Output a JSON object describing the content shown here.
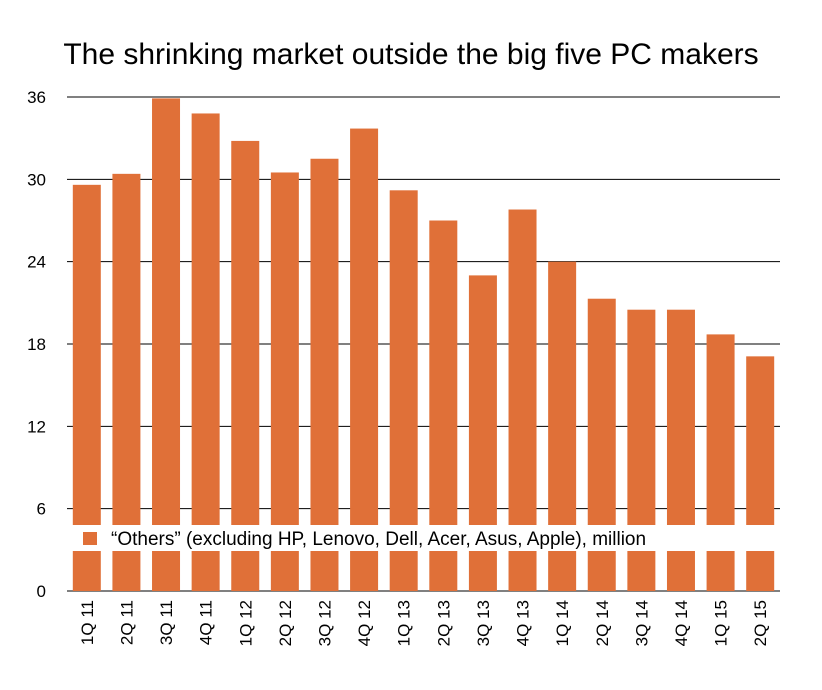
{
  "chart_data": {
    "type": "bar",
    "title": "The shrinking market outside the big five PC makers",
    "categories": [
      "1Q 11",
      "2Q 11",
      "3Q 11",
      "4Q 11",
      "1Q 12",
      "2Q 12",
      "3Q 12",
      "4Q 12",
      "1Q 13",
      "2Q 13",
      "3Q 13",
      "4Q 13",
      "1Q 14",
      "2Q 14",
      "3Q 14",
      "4Q 14",
      "1Q 15",
      "2Q 15"
    ],
    "series": [
      {
        "name": "“Others” (excluding HP, Lenovo, Dell, Acer, Asus, Apple), million",
        "values": [
          29.6,
          30.4,
          35.9,
          34.8,
          32.8,
          30.5,
          31.5,
          33.7,
          29.2,
          27.0,
          23.0,
          27.8,
          24.0,
          21.3,
          20.5,
          20.5,
          18.7,
          17.1
        ],
        "color": "#E07038"
      }
    ],
    "yticks": [
      0,
      6,
      12,
      18,
      24,
      30,
      36
    ],
    "ylim": [
      0,
      36
    ],
    "xlabel": "",
    "ylabel": "",
    "grid": true,
    "legend_position": "bottom-center"
  }
}
